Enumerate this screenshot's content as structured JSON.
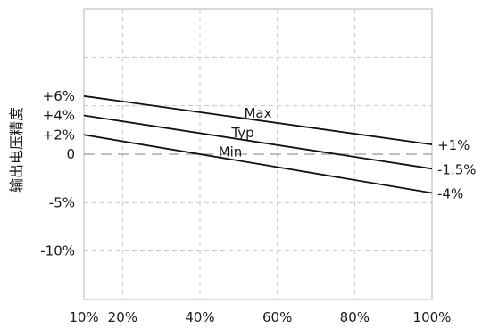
{
  "chart_data": {
    "type": "line",
    "ylabel": "输出电压精度",
    "xlim": [
      10,
      100
    ],
    "ylim": [
      -15,
      15
    ],
    "x_ticks": [
      {
        "value": 10,
        "label": "10%"
      },
      {
        "value": 20,
        "label": "20%"
      },
      {
        "value": 40,
        "label": "40%"
      },
      {
        "value": 60,
        "label": "60%"
      },
      {
        "value": 80,
        "label": "80%"
      },
      {
        "value": 100,
        "label": "100%"
      }
    ],
    "y_ticks": [
      {
        "value": 6,
        "label": "+6%"
      },
      {
        "value": 4,
        "label": "+4%"
      },
      {
        "value": 2,
        "label": "+2%"
      },
      {
        "value": 0,
        "label": "0"
      },
      {
        "value": -5,
        "label": "-5%"
      },
      {
        "value": -10,
        "label": "-10%"
      }
    ],
    "grid_y_values": [
      10,
      5,
      -5,
      -10
    ],
    "grid_x_values": [
      20,
      40,
      60,
      80
    ],
    "zero_line": 0,
    "series": [
      {
        "name": "Max",
        "x": [
          10,
          100
        ],
        "y": [
          6,
          1
        ],
        "end_label": "+1%"
      },
      {
        "name": "Typ",
        "x": [
          10,
          100
        ],
        "y": [
          4,
          -1.5
        ],
        "end_label": "-1.5%"
      },
      {
        "name": "Min",
        "x": [
          10,
          100
        ],
        "y": [
          2,
          -4
        ],
        "end_label": "-4%"
      }
    ],
    "grid": true,
    "colors": {
      "line": "#111111",
      "grid": "#c8c8c8",
      "zero": "#a8a8a8",
      "frame": "#b5b5b5"
    }
  }
}
